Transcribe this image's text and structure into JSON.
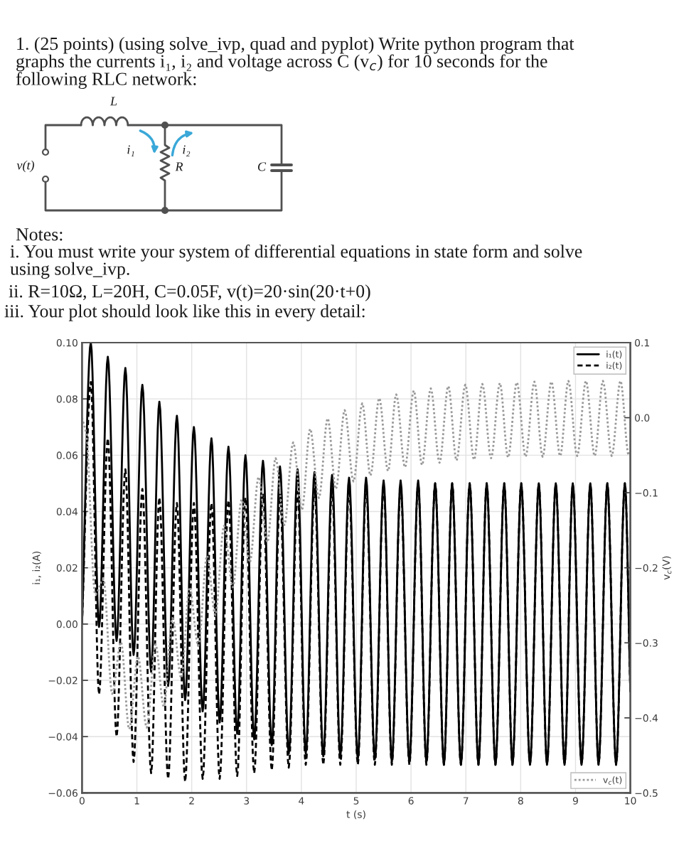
{
  "chart_data": {
    "type": "line",
    "title": "1. (25 points) (using solve_ivp, quad and pyplot) Write python program that graphs the currents i₁, i₂ and voltage across C (v$_{c}$) for 10 seconds for the following RLC network:",
    "annotations": [
      "L",
      "i₁",
      "i₂",
      "R",
      "C",
      "v(t)",
      "Notes:",
      "i. You must write your system of differential equations in state form and solve using solve_ivp.",
      "ii. R=10Ω, L=20H, C=0.05F, v(t)=20·sin(20·t+0)",
      "iii. Your plot should look like this in every detail:"
    ],
    "xlabel": "t (s)",
    "ylabel": "i₁, i₂(A)",
    "y2label": "v$_{c}$(V)",
    "x": [
      0,
      0.16,
      0.31,
      0.47,
      0.63,
      0.79,
      0.94,
      1.1,
      1.26,
      1.41,
      1.57,
      1.73,
      1.88,
      2.04,
      2.2,
      2.36,
      2.51,
      2.67,
      2.83,
      2.98,
      3.14,
      3.3,
      3.46,
      3.61,
      3.77,
      3.93,
      4.08,
      4.24,
      4.4,
      4.56,
      4.71,
      4.87,
      5.03,
      5.18,
      5.34,
      5.5,
      5.65,
      5.81,
      5.97,
      6.13,
      6.28,
      6.44,
      6.6,
      6.75,
      6.91,
      7.07,
      7.23,
      7.38,
      7.54,
      7.7,
      7.85,
      8.01,
      8.17,
      8.33,
      8.48,
      8.64,
      8.8,
      8.95,
      9.11,
      9.27,
      9.42,
      9.58,
      9.74,
      9.9,
      10
    ],
    "series": [
      {
        "name": "i₁(t)",
        "color": "#000000",
        "line_style": "solid",
        "values": [
          0,
          0.1,
          -0.001,
          0.095,
          -0.006,
          0.091,
          -0.011,
          0.085,
          -0.017,
          0.079,
          -0.022,
          0.074,
          -0.027,
          0.07,
          -0.031,
          0.066,
          -0.035,
          0.063,
          -0.039,
          0.06,
          -0.041,
          0.058,
          -0.043,
          0.056,
          -0.046,
          0.055,
          -0.046,
          0.054,
          -0.047,
          0.053,
          -0.047,
          0.052,
          -0.048,
          0.052,
          -0.048,
          0.051,
          -0.049,
          0.051,
          -0.049,
          0.051,
          -0.049,
          0.05,
          -0.05,
          0.05,
          -0.05,
          0.05,
          -0.05,
          0.05,
          -0.05,
          0.05,
          -0.05,
          0.05,
          -0.05,
          0.05,
          -0.05,
          0.05,
          -0.05,
          0.05,
          -0.05,
          0.05,
          -0.05,
          0.05,
          -0.05,
          0.05,
          -0.024
        ]
      },
      {
        "name": "i₂(t)",
        "color": "#000000",
        "line_style": "dashed",
        "values": [
          0,
          0.086,
          -0.025,
          0.066,
          -0.04,
          0.055,
          -0.049,
          0.048,
          -0.053,
          0.045,
          -0.055,
          0.043,
          -0.056,
          0.043,
          -0.055,
          0.043,
          -0.055,
          0.044,
          -0.054,
          0.045,
          -0.053,
          0.046,
          -0.052,
          0.046,
          -0.051,
          0.047,
          -0.05,
          0.048,
          -0.05,
          0.048,
          -0.05,
          0.048,
          -0.05,
          0.049,
          -0.05,
          0.049,
          -0.05,
          0.049,
          -0.05,
          0.05,
          -0.05,
          0.05,
          -0.05,
          0.05,
          -0.05,
          0.05,
          -0.05,
          0.05,
          -0.05,
          0.05,
          -0.05,
          0.05,
          -0.05,
          0.05,
          -0.05,
          0.05,
          -0.05,
          0.05,
          -0.05,
          0.05,
          -0.05,
          0.05,
          -0.05,
          0.05,
          -0.024
        ]
      },
      {
        "name": "v$_{c}$(t)",
        "color": "#999999",
        "line_style": "dotted",
        "axis": "y2",
        "x": [
          0,
          0.08,
          0.24,
          0.39,
          0.55,
          0.71,
          0.86,
          1.02,
          1.18,
          1.34,
          1.49,
          1.65,
          1.81,
          1.96,
          2.12,
          2.28,
          2.43,
          2.59,
          2.75,
          2.91,
          3.06,
          3.22,
          3.38,
          3.53,
          3.69,
          3.85,
          4.01,
          4.16,
          4.32,
          4.48,
          4.63,
          4.79,
          4.95,
          5.11,
          5.26,
          5.42,
          5.58,
          5.73,
          5.89,
          6.05,
          6.2,
          6.36,
          6.52,
          6.68,
          6.83,
          6.99,
          7.15,
          7.3,
          7.46,
          7.62,
          7.77,
          7.93,
          8.09,
          8.25,
          8.4,
          8.56,
          8.72,
          8.87,
          9.03,
          9.19,
          9.35,
          9.5,
          9.66,
          9.82,
          9.97,
          10
        ],
        "values": [
          0,
          -0.023,
          -0.236,
          -0.215,
          -0.368,
          -0.299,
          -0.415,
          -0.318,
          -0.413,
          -0.302,
          -0.385,
          -0.267,
          -0.347,
          -0.226,
          -0.304,
          -0.184,
          -0.263,
          -0.144,
          -0.226,
          -0.109,
          -0.193,
          -0.079,
          -0.166,
          -0.054,
          -0.143,
          -0.033,
          -0.123,
          -0.015,
          -0.107,
          -0.001,
          -0.095,
          0.01,
          -0.085,
          0.019,
          -0.077,
          0.026,
          -0.071,
          0.031,
          -0.066,
          0.036,
          -0.063,
          0.039,
          -0.06,
          0.042,
          -0.057,
          0.044,
          -0.056,
          0.045,
          -0.054,
          0.046,
          -0.053,
          0.047,
          -0.052,
          0.048,
          -0.052,
          0.048,
          -0.051,
          0.049,
          -0.051,
          0.049,
          -0.051,
          0.049,
          -0.051,
          0.049,
          -0.05,
          -0.044
        ]
      }
    ],
    "xlim": [
      0,
      10
    ],
    "xticks": [
      0,
      1,
      2,
      3,
      4,
      5,
      6,
      7,
      8,
      9,
      10
    ],
    "ylim": [
      -0.06,
      0.1
    ],
    "yticks": [
      {
        "value": -0.06,
        "label": "−0.06"
      },
      {
        "value": -0.04,
        "label": "−0.04"
      },
      {
        "value": -0.02,
        "label": "−0.02"
      },
      {
        "value": 0,
        "label": "0.00"
      },
      {
        "value": 0.02,
        "label": "0.02"
      },
      {
        "value": 0.04,
        "label": "0.04"
      },
      {
        "value": 0.06,
        "label": "0.06"
      },
      {
        "value": 0.08,
        "label": "0.08"
      },
      {
        "value": 0.1,
        "label": "0.10"
      }
    ],
    "y2lim": [
      -0.5,
      0.1
    ],
    "y2ticks": [
      {
        "value": -0.5,
        "label": "−0.5"
      },
      {
        "value": -0.4,
        "label": "−0.4"
      },
      {
        "value": -0.3,
        "label": "−0.3"
      },
      {
        "value": -0.2,
        "label": "−0.2"
      },
      {
        "value": -0.1,
        "label": "−0.1"
      },
      {
        "value": 0,
        "label": "0.0"
      },
      {
        "value": 0.1,
        "label": "0.1"
      }
    ],
    "grid": true,
    "legend": "top right"
  }
}
